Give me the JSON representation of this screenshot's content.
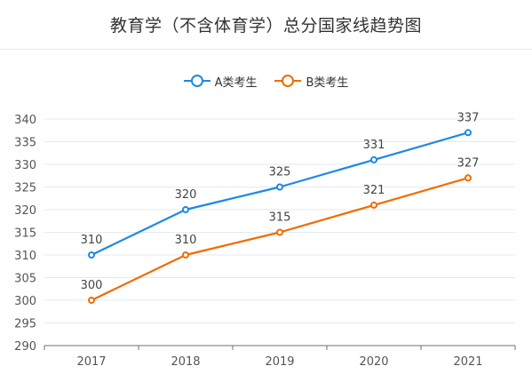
{
  "header": {
    "title": "教育学（不含体育学）总分国家线趋势图"
  },
  "chart_data": {
    "type": "line",
    "title": "教育学（不含体育学）总分国家线趋势图",
    "categories": [
      "2017",
      "2018",
      "2019",
      "2020",
      "2021"
    ],
    "series": [
      {
        "name": "A类考生",
        "color": "#1e88e5",
        "values": [
          310,
          320,
          325,
          331,
          337
        ]
      },
      {
        "name": "B类考生",
        "color": "#ef6c00",
        "values": [
          300,
          310,
          315,
          321,
          327
        ]
      }
    ],
    "ylim": [
      290,
      340
    ],
    "yticks": [
      290,
      295,
      300,
      305,
      310,
      315,
      320,
      325,
      330,
      335,
      340
    ],
    "grid": true,
    "legend_position": "top-center",
    "xlabel": "",
    "ylabel": ""
  }
}
